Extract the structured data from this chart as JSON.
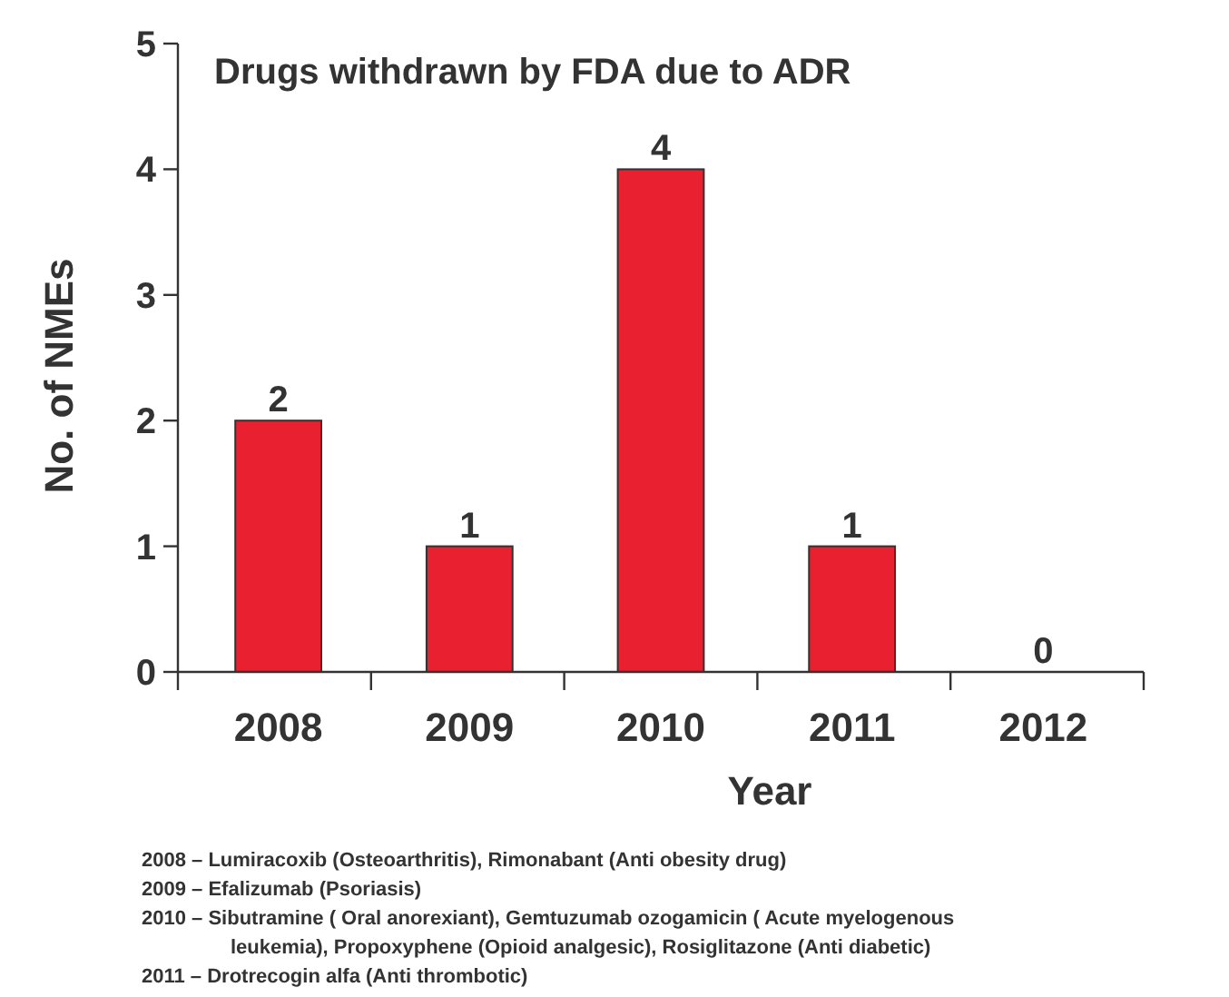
{
  "chart_data": {
    "type": "bar",
    "title": "Drugs withdrawn by FDA due to ADR",
    "xlabel": "Year",
    "ylabel": "No. of NMEs",
    "categories": [
      "2008",
      "2009",
      "2010",
      "2011",
      "2012"
    ],
    "values": [
      2,
      1,
      4,
      1,
      0
    ],
    "color": "#e8202f",
    "ylim": [
      0,
      5
    ],
    "yticks": [
      0,
      1,
      2,
      3,
      4,
      5
    ],
    "grid": false,
    "data_labels": true,
    "annotations": [
      "2008 – Lumiracoxib (Osteoarthritis), Rimonabant (Anti obesity drug)",
      "2009 – Efalizumab (Psoriasis)",
      "2010 – Sibutramine ( Oral anorexiant), Gemtuzumab ozogamicin ( Acute myelogenous leukemia), Propoxyphene (Opioid analgesic), Rosiglitazone (Anti diabetic)",
      "2011 – Drotrecogin alfa (Anti thrombotic)"
    ]
  }
}
